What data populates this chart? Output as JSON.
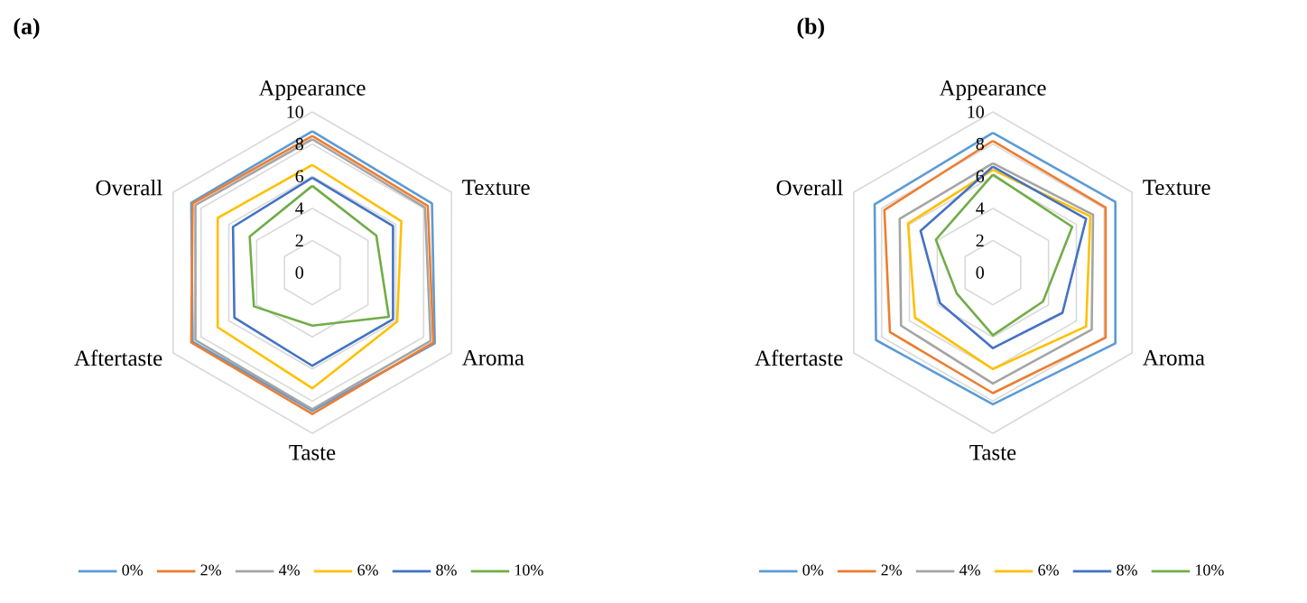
{
  "chart_data": [
    {
      "type": "radar",
      "title": "(a)",
      "categories": [
        "Appearance",
        "Texture",
        "Aroma",
        "Taste",
        "Aftertaste",
        "Overall"
      ],
      "ylim": [
        0,
        10
      ],
      "yticks": [
        0,
        2,
        4,
        6,
        8,
        10
      ],
      "grid": true,
      "legend": "bottom",
      "series": [
        {
          "name": "0%",
          "color": "#5b9bd5",
          "values": [
            8.8,
            8.6,
            8.8,
            8.6,
            8.6,
            8.7
          ]
        },
        {
          "name": "2%",
          "color": "#ed7d31",
          "values": [
            8.5,
            8.3,
            8.7,
            8.8,
            8.7,
            8.6
          ]
        },
        {
          "name": "4%",
          "color": "#a5a5a5",
          "values": [
            8.3,
            8.1,
            8.5,
            8.5,
            8.4,
            8.4
          ]
        },
        {
          "name": "6%",
          "color": "#ffc000",
          "values": [
            6.7,
            6.4,
            6.1,
            7.2,
            6.8,
            6.8
          ]
        },
        {
          "name": "8%",
          "color": "#4472c4",
          "values": [
            5.9,
            5.8,
            5.8,
            5.8,
            5.6,
            5.7
          ]
        },
        {
          "name": "10%",
          "color": "#70ad47",
          "values": [
            5.4,
            4.6,
            5.5,
            3.3,
            4.2,
            4.5
          ]
        }
      ]
    },
    {
      "type": "radar",
      "title": "(b)",
      "categories": [
        "Appearance",
        "Texture",
        "Aroma",
        "Taste",
        "Aftertaste",
        "Overall"
      ],
      "ylim": [
        0,
        10
      ],
      "yticks": [
        0,
        2,
        4,
        6,
        8,
        10
      ],
      "grid": true,
      "legend": "bottom",
      "series": [
        {
          "name": "0%",
          "color": "#5b9bd5",
          "values": [
            8.7,
            8.8,
            8.8,
            8.2,
            8.4,
            8.5
          ]
        },
        {
          "name": "2%",
          "color": "#ed7d31",
          "values": [
            8.2,
            8.1,
            8.1,
            7.5,
            7.4,
            7.8
          ]
        },
        {
          "name": "4%",
          "color": "#a5a5a5",
          "values": [
            6.8,
            7.2,
            7.1,
            6.9,
            6.6,
            6.7
          ]
        },
        {
          "name": "6%",
          "color": "#ffc000",
          "values": [
            6.4,
            7.0,
            6.7,
            6.0,
            5.6,
            6.1
          ]
        },
        {
          "name": "8%",
          "color": "#4472c4",
          "values": [
            6.6,
            6.7,
            5.0,
            4.7,
            3.8,
            5.2
          ]
        },
        {
          "name": "10%",
          "color": "#70ad47",
          "values": [
            6.1,
            5.7,
            3.6,
            3.9,
            2.6,
            4.1
          ]
        }
      ]
    }
  ]
}
